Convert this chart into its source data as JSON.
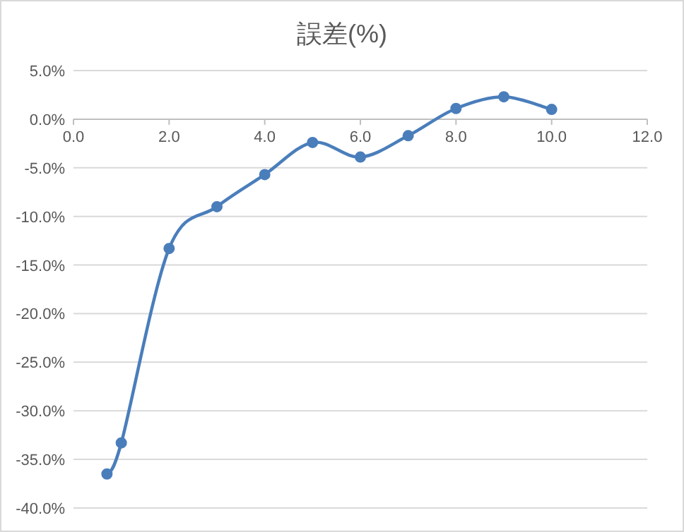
{
  "chart_data": {
    "type": "line",
    "title": "誤差(%)",
    "x": [
      0.7,
      1.0,
      2.0,
      3.0,
      4.0,
      5.0,
      6.0,
      7.0,
      8.0,
      9.0,
      10.0
    ],
    "series": [
      {
        "color": "#4a7ebb",
        "values": [
          -36.5,
          -33.3,
          -13.3,
          -9.0,
          -5.7,
          -2.4,
          -3.9,
          -1.7,
          1.1,
          2.3,
          1.0
        ]
      }
    ],
    "xlim": [
      0,
      12
    ],
    "xticks": [
      {
        "value": 0,
        "label": "0.0"
      },
      {
        "value": 2,
        "label": "2.0"
      },
      {
        "value": 4,
        "label": "4.0"
      },
      {
        "value": 6,
        "label": "6.0"
      },
      {
        "value": 8,
        "label": "8.0"
      },
      {
        "value": 10,
        "label": "10.0"
      },
      {
        "value": 12,
        "label": "12.0"
      }
    ],
    "ylim": [
      -40,
      5
    ],
    "yticks": [
      {
        "value": 5,
        "label": "5.0%"
      },
      {
        "value": 0,
        "label": "0.0%"
      },
      {
        "value": -5,
        "label": "-5.0%"
      },
      {
        "value": -10,
        "label": "-10.0%"
      },
      {
        "value": -15,
        "label": "-15.0%"
      },
      {
        "value": -20,
        "label": "-20.0%"
      },
      {
        "value": -25,
        "label": "-25.0%"
      },
      {
        "value": -30,
        "label": "-30.0%"
      },
      {
        "value": -35,
        "label": "-35.0%"
      },
      {
        "value": -40,
        "label": "-40.0%"
      }
    ],
    "grid": "y",
    "marker": "circle",
    "line_style": "solid"
  }
}
